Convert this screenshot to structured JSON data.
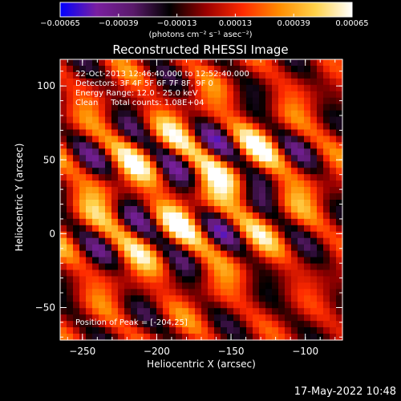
{
  "chart_data": {
    "type": "heatmap",
    "title": "Reconstructed RHESSI Image",
    "xlabel": "Heliocentric X (arcsec)",
    "ylabel": "Heliocentric Y (arcsec)",
    "xlim": [
      -265,
      -75
    ],
    "ylim": [
      -72,
      118
    ],
    "x_ticks": [
      -250,
      -200,
      -150,
      -100
    ],
    "y_ticks": [
      -50,
      0,
      50,
      100
    ],
    "x_tick_labels": [
      "−250",
      "−200",
      "−150",
      "−100"
    ],
    "y_tick_labels": [
      "−50",
      "0",
      "50",
      "100"
    ],
    "colorbar": {
      "min": -0.00065,
      "max": 0.00065,
      "tick_values": [
        -0.00065,
        -0.00039,
        -0.00013,
        0.00013,
        0.00039,
        0.00065
      ],
      "tick_labels": [
        "−0.00065",
        "−0.00039",
        "−0.00013",
        "0.00013",
        "0.00039",
        "0.00065"
      ],
      "colormap": [
        "#0000ff",
        "#7a1fa0",
        "#5a1a6a",
        "#000000",
        "#9a0000",
        "#ff2a00",
        "#ff8c00",
        "#ffd24a",
        "#ffffff"
      ],
      "units_label": "(photons cm⁻² s⁻¹ asec⁻²)"
    },
    "annotations": {
      "time_range": "22-Oct-2013 12:46:40.000 to 12:52:40.000",
      "detectors": "Detectors: 3F 4F 5F 6F 7F 8F, 9F 0",
      "energy_range": "Energy Range: 12.0 - 25.0 keV",
      "method_counts": "Clean     Total counts: 1.08E+04",
      "peak": "Position of Peak = [-204,25]"
    }
  },
  "footer": {
    "timestamp": "17-May-2022 10:48"
  },
  "colors": {
    "background": "#000000",
    "text": "#ffffff",
    "axis": "#ffffff"
  }
}
